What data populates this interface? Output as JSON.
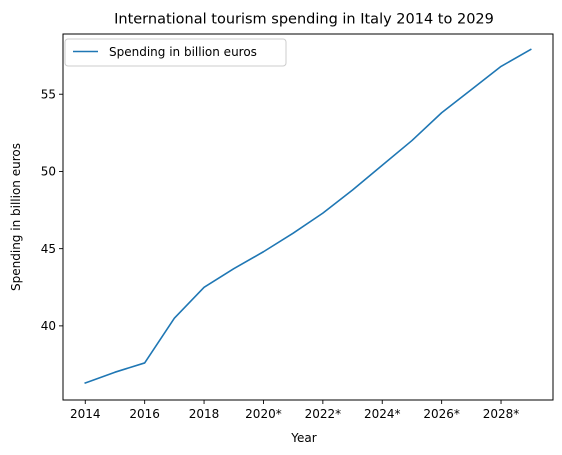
{
  "chart_data": {
    "type": "line",
    "title": "International tourism spending in Italy 2014 to 2029",
    "xlabel": "Year",
    "ylabel": "Spending in billion euros",
    "x": [
      "2014",
      "2015",
      "2016",
      "2017",
      "2018",
      "2019",
      "2020*",
      "2021*",
      "2022*",
      "2023*",
      "2024*",
      "2025*",
      "2026*",
      "2027*",
      "2028*",
      "2029*"
    ],
    "x_tick_labels": [
      "2014",
      "2016",
      "2018",
      "2020*",
      "2022*",
      "2024*",
      "2026*",
      "2028*"
    ],
    "y_ticks": [
      40,
      45,
      50,
      55
    ],
    "ylim": [
      35.2,
      58.9
    ],
    "series": [
      {
        "name": "Spending in billion euros",
        "color": "#1f77b4",
        "values": [
          36.3,
          37.0,
          37.6,
          40.5,
          42.5,
          43.7,
          44.8,
          46.0,
          47.3,
          48.8,
          50.4,
          52.0,
          53.8,
          55.3,
          56.8,
          57.9
        ]
      }
    ],
    "grid": false,
    "legend": "top-left"
  }
}
